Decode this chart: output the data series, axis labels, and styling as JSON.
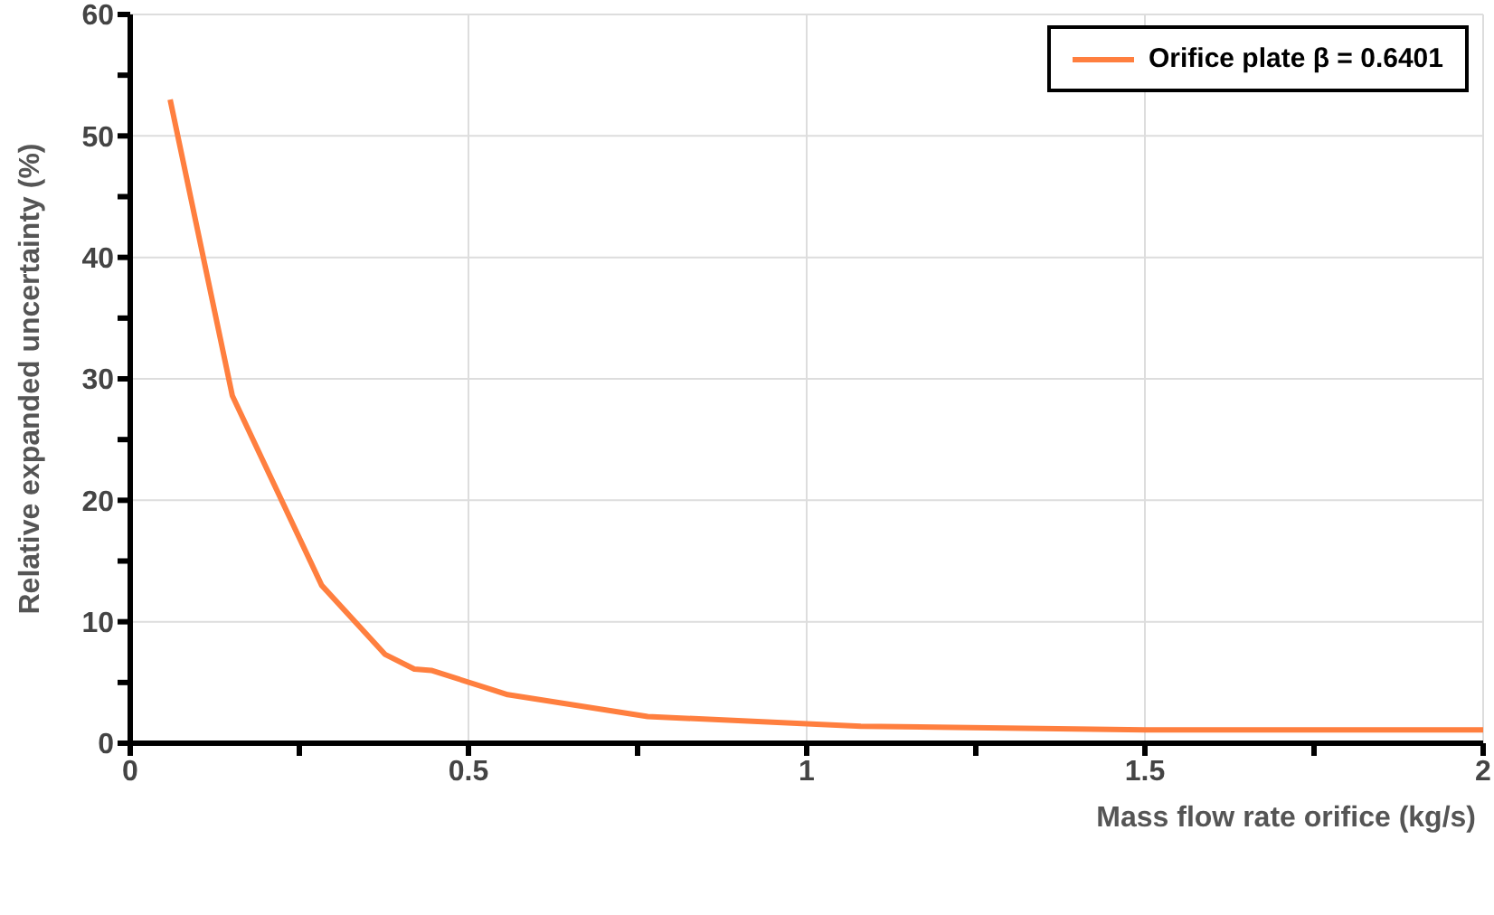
{
  "chart_data": {
    "type": "line",
    "xlabel": "Mass flow rate orifice (kg/s)",
    "ylabel": "Relative expanded uncertainty (%)",
    "series": [
      {
        "name": "Orifice plate β = 0.6401",
        "color": "#ff7f3f",
        "x": [
          0.059,
          0.151,
          0.283,
          0.377,
          0.42,
          0.445,
          0.558,
          0.765,
          1.0,
          1.08,
          1.5,
          2.0
        ],
        "values": [
          53,
          28.6,
          13,
          7.3,
          6.1,
          6.0,
          4.0,
          2.2,
          1.6,
          1.4,
          1.1,
          1.1
        ]
      }
    ],
    "xlim": [
      0,
      2
    ],
    "xticks": [
      0,
      {
        "value": 0.25,
        "label": null
      },
      0.5,
      {
        "value": 0.75,
        "label": null
      },
      1,
      {
        "value": 1.25,
        "label": null
      },
      1.5,
      {
        "value": 1.75,
        "label": null
      },
      2
    ],
    "ylim": [
      0,
      60
    ],
    "yticks": [
      0,
      {
        "value": 5,
        "label": null
      },
      10,
      {
        "value": 15,
        "label": null
      },
      20,
      {
        "value": 25,
        "label": null
      },
      30,
      {
        "value": 35,
        "label": null
      },
      40,
      {
        "value": 45,
        "label": null
      },
      50,
      {
        "value": 55,
        "label": null
      },
      60
    ],
    "grid": true,
    "legend": "top right",
    "marker": "none",
    "line_style": "solid"
  }
}
